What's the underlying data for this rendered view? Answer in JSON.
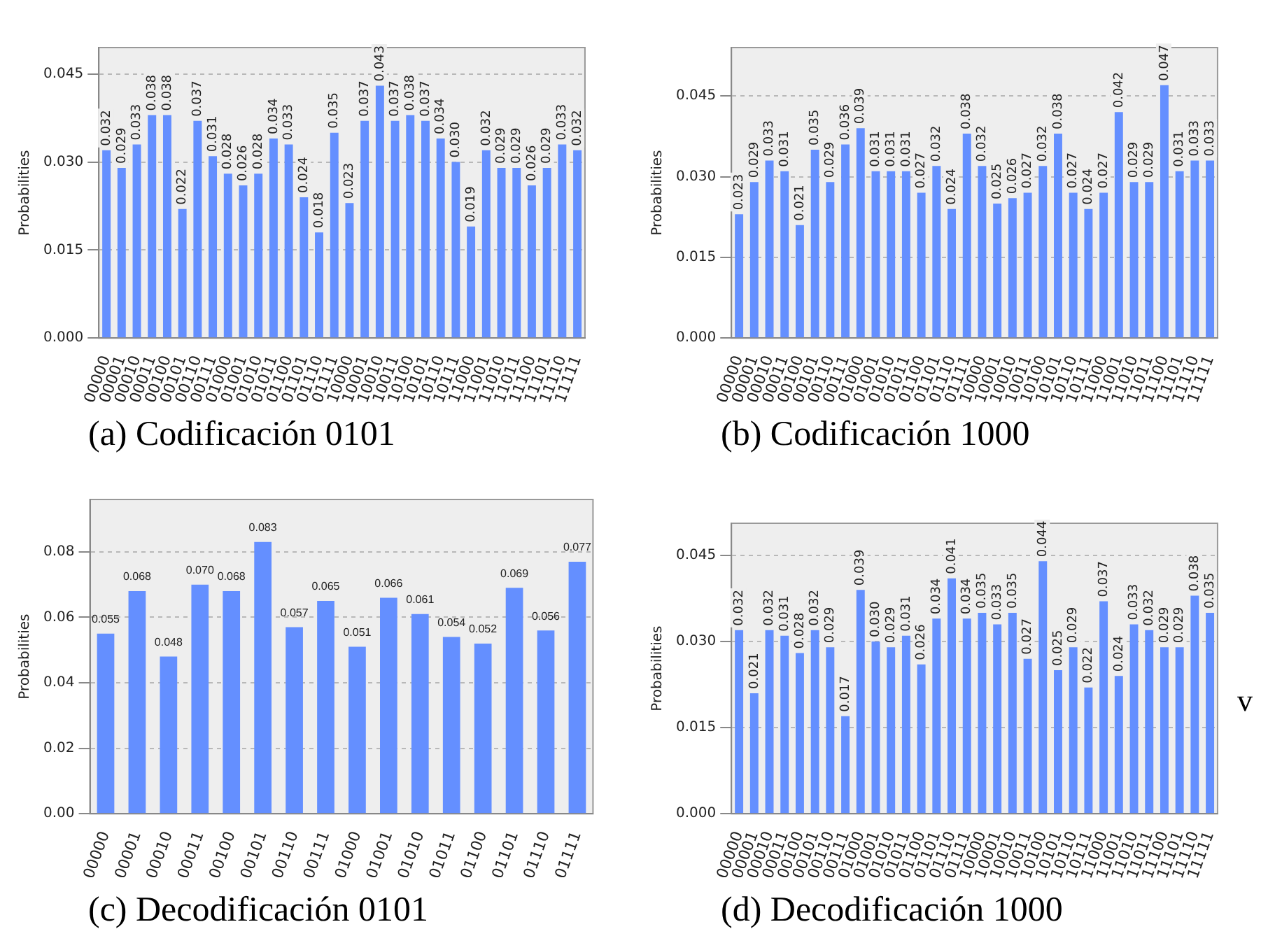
{
  "chart_data": [
    {
      "type": "bar",
      "title": "(a) Codificación 0101",
      "ylabel": "Probabilities",
      "color": "#648fff",
      "grid": "y",
      "ylim": [
        0,
        0.0495
      ],
      "yticks": [
        {
          "value": 0,
          "label": "0.000"
        },
        {
          "value": 0.015,
          "label": "0.015"
        },
        {
          "value": 0.03,
          "label": "0.030"
        },
        {
          "value": 0.045,
          "label": "0.045"
        }
      ],
      "categories": [
        "00000",
        "00001",
        "00010",
        "00011",
        "00100",
        "00101",
        "00110",
        "00111",
        "01000",
        "01001",
        "01010",
        "01011",
        "01100",
        "01101",
        "01110",
        "01111",
        "10000",
        "10001",
        "10010",
        "10011",
        "10100",
        "10101",
        "10110",
        "10111",
        "11000",
        "11001",
        "11010",
        "11011",
        "11100",
        "11101",
        "11110",
        "11111"
      ],
      "values": [
        0.032,
        0.029,
        0.033,
        0.038,
        0.038,
        0.022,
        0.037,
        0.031,
        0.028,
        0.026,
        0.028,
        0.034,
        0.033,
        0.024,
        0.018,
        0.035,
        0.023,
        0.037,
        0.043,
        0.037,
        0.038,
        0.037,
        0.034,
        0.03,
        0.019,
        0.032,
        0.029,
        0.029,
        0.026,
        0.029,
        0.033,
        0.032
      ],
      "value_labels": [
        "0.032",
        "0.029",
        "0.033",
        "0.038",
        "0.038",
        "0.022",
        "0.037",
        "0.031",
        "0.028",
        "0.026",
        "0.028",
        "0.034",
        "0.033",
        "0.024",
        "0.018",
        "0.035",
        "0.023",
        "0.037",
        "0.043",
        "0.037",
        "0.038",
        "0.037",
        "0.034",
        "0.030",
        "0.019",
        "0.032",
        "0.029",
        "0.029",
        "0.026",
        "0.029",
        "0.033",
        "0.032"
      ]
    },
    {
      "type": "bar",
      "title": "(b) Codificación 1000",
      "ylabel": "Probabilities",
      "color": "#648fff",
      "grid": "y",
      "ylim": [
        0,
        0.054
      ],
      "yticks": [
        {
          "value": 0,
          "label": "0.000"
        },
        {
          "value": 0.015,
          "label": "0.015"
        },
        {
          "value": 0.03,
          "label": "0.030"
        },
        {
          "value": 0.045,
          "label": "0.045"
        }
      ],
      "categories": [
        "00000",
        "00001",
        "00010",
        "00011",
        "00100",
        "00101",
        "00110",
        "00111",
        "01000",
        "01001",
        "01010",
        "01011",
        "01100",
        "01101",
        "01110",
        "01111",
        "10000",
        "10001",
        "10010",
        "10011",
        "10100",
        "10101",
        "10110",
        "10111",
        "11000",
        "11001",
        "11010",
        "11011",
        "11100",
        "11101",
        "11110",
        "11111"
      ],
      "values": [
        0.023,
        0.029,
        0.033,
        0.031,
        0.021,
        0.035,
        0.029,
        0.036,
        0.039,
        0.031,
        0.031,
        0.031,
        0.027,
        0.032,
        0.024,
        0.038,
        0.032,
        0.025,
        0.026,
        0.027,
        0.032,
        0.038,
        0.027,
        0.024,
        0.027,
        0.042,
        0.029,
        0.029,
        0.047,
        0.031,
        0.033,
        0.033
      ],
      "value_labels": [
        "0.023",
        "0.029",
        "0.033",
        "0.031",
        "0.021",
        "0.035",
        "0.029",
        "0.036",
        "0.039",
        "0.031",
        "0.031",
        "0.031",
        "0.027",
        "0.032",
        "0.024",
        "0.038",
        "0.032",
        "0.025",
        "0.026",
        "0.027",
        "0.032",
        "0.038",
        "0.027",
        "0.024",
        "0.027",
        "0.042",
        "0.029",
        "0.029",
        "0.047",
        "0.031",
        "0.033",
        "0.033"
      ]
    },
    {
      "type": "bar",
      "title": "(c) Decodificación 0101",
      "ylabel": "Probabilities",
      "color": "#648fff",
      "grid": "y",
      "ylim": [
        0,
        0.096
      ],
      "yticks": [
        {
          "value": 0,
          "label": "0.00"
        },
        {
          "value": 0.02,
          "label": "0.02"
        },
        {
          "value": 0.04,
          "label": "0.04"
        },
        {
          "value": 0.06,
          "label": "0.06"
        },
        {
          "value": 0.08,
          "label": "0.08"
        }
      ],
      "categories": [
        "00000",
        "00001",
        "00010",
        "00011",
        "00100",
        "00101",
        "00110",
        "00111",
        "01000",
        "01001",
        "01010",
        "01011",
        "01100",
        "01101",
        "01110",
        "01111"
      ],
      "values": [
        0.055,
        0.068,
        0.048,
        0.07,
        0.068,
        0.083,
        0.057,
        0.065,
        0.051,
        0.066,
        0.061,
        0.054,
        0.052,
        0.069,
        0.056,
        0.077
      ],
      "value_labels": [
        "0.055",
        "0.068",
        "0.048",
        "0.070",
        "0.068",
        "0.083",
        "0.057",
        "0.065",
        "0.051",
        "0.066",
        "0.061",
        "0.054",
        "0.052",
        "0.069",
        "0.056",
        "0.077"
      ]
    },
    {
      "type": "bar",
      "title": "(d) Decodificación 1000",
      "ylabel": "Probabilities",
      "color": "#648fff",
      "grid": "y",
      "ylim": [
        0,
        0.0506
      ],
      "yticks": [
        {
          "value": 0,
          "label": "0.000"
        },
        {
          "value": 0.015,
          "label": "0.015"
        },
        {
          "value": 0.03,
          "label": "0.030"
        },
        {
          "value": 0.045,
          "label": "0.045"
        }
      ],
      "categories": [
        "00000",
        "00001",
        "00010",
        "00011",
        "00100",
        "00101",
        "00110",
        "00111",
        "01000",
        "01001",
        "01010",
        "01011",
        "01100",
        "01101",
        "01110",
        "01111",
        "10000",
        "10001",
        "10010",
        "10011",
        "10100",
        "10101",
        "10110",
        "10111",
        "11000",
        "11001",
        "11010",
        "11011",
        "11100",
        "11101",
        "11110",
        "11111"
      ],
      "values": [
        0.032,
        0.021,
        0.032,
        0.031,
        0.028,
        0.032,
        0.029,
        0.017,
        0.039,
        0.03,
        0.029,
        0.031,
        0.026,
        0.034,
        0.041,
        0.034,
        0.035,
        0.033,
        0.035,
        0.027,
        0.044,
        0.025,
        0.029,
        0.022,
        0.037,
        0.024,
        0.033,
        0.032,
        0.029,
        0.029,
        0.038,
        0.035
      ],
      "value_labels": [
        "0.032",
        "0.021",
        "0.032",
        "0.031",
        "0.028",
        "0.032",
        "0.029",
        "0.017",
        "0.039",
        "0.030",
        "0.029",
        "0.031",
        "0.026",
        "0.034",
        "0.041",
        "0.034",
        "0.035",
        "0.033",
        "0.035",
        "0.027",
        "0.044",
        "0.025",
        "0.029",
        "0.022",
        "0.037",
        "0.024",
        "0.033",
        "0.032",
        "0.029",
        "0.029",
        "0.038",
        "0.035"
      ],
      "annotations": [
        "v"
      ]
    }
  ]
}
